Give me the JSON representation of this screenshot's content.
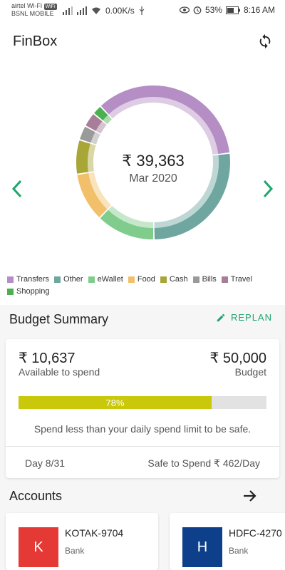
{
  "status_bar": {
    "carrier_line1": "airtel Wi-Fi",
    "carrier_badge": "WiFi",
    "carrier_line2": "BSNL MOBILE",
    "speed": "0.00K/s",
    "battery": "53%",
    "time": "8:16 AM"
  },
  "header": {
    "title": "FinBox",
    "sync_icon": "sync-icon"
  },
  "summary": {
    "total": "₹ 39,363",
    "month": "Mar 2020"
  },
  "chart_data": {
    "type": "pie",
    "categories": [
      "Transfers",
      "Other",
      "eWallet",
      "Food",
      "Cash",
      "Bills",
      "Travel",
      "Shopping"
    ],
    "values": [
      34,
      26,
      12,
      10,
      7,
      3,
      3,
      2
    ],
    "colors": [
      "#b48ec4",
      "#6fa6a0",
      "#7fcc8c",
      "#f2c06a",
      "#a8a637",
      "#9a9a9a",
      "#a87d98",
      "#4caf50"
    ]
  },
  "budget": {
    "title": "Budget Summary",
    "replan_label": "REPLAN",
    "available_amount": "₹ 10,637",
    "available_label": "Available to spend",
    "budget_amount": "₹ 50,000",
    "budget_label": "Budget",
    "progress_label": "78%",
    "progress_value": 0.78,
    "advice": "Spend less than your daily spend limit to be safe.",
    "day": "Day 8/31",
    "safe_to_spend": "Safe to Spend ₹ 462/Day"
  },
  "accounts": {
    "title": "Accounts",
    "items": [
      {
        "initial": "K",
        "name": "KOTAK-9704",
        "type": "Bank",
        "color": "#e53935"
      },
      {
        "initial": "H",
        "name": "HDFC-4270",
        "type": "Bank",
        "color": "#0d3f8a"
      }
    ]
  },
  "colors": {
    "accent": "#1fa56e",
    "progress": "#c9c80a"
  }
}
